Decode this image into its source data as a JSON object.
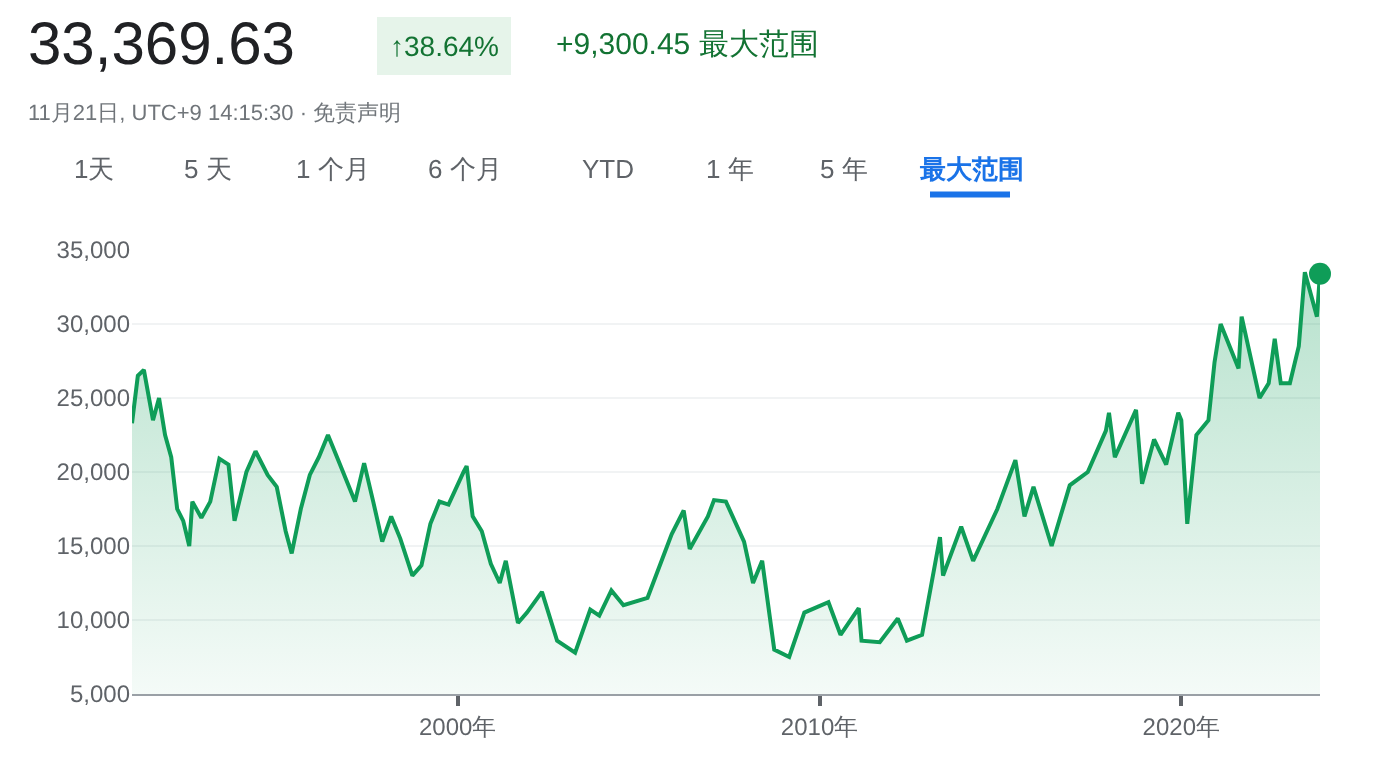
{
  "chart_data": {
    "type": "area",
    "x": [
      "1991-01",
      "1991-03",
      "1991-05",
      "1991-08",
      "1991-10",
      "1991-12",
      "1992-02",
      "1992-04",
      "1992-06",
      "1992-08",
      "1992-09",
      "1992-12",
      "1993-03",
      "1993-06",
      "1993-09",
      "1993-11",
      "1994-03",
      "1994-06",
      "1994-10",
      "1995-01",
      "1995-04",
      "1995-06",
      "1995-09",
      "1995-12",
      "1996-03",
      "1996-06",
      "1996-09",
      "1996-12",
      "1997-03",
      "1997-06",
      "1997-09",
      "1997-12",
      "1998-03",
      "1998-06",
      "1998-10",
      "1999-01",
      "1999-04",
      "1999-07",
      "1999-10",
      "2000-03",
      "2000-04",
      "2000-06",
      "2000-09",
      "2000-12",
      "2001-03",
      "2001-05",
      "2001-09",
      "2001-12",
      "2002-05",
      "2002-10",
      "2003-04",
      "2003-09",
      "2003-12",
      "2004-04",
      "2004-08",
      "2005-04",
      "2005-12",
      "2006-04",
      "2006-06",
      "2006-12",
      "2007-02",
      "2007-06",
      "2007-12",
      "2008-03",
      "2008-06",
      "2008-10",
      "2009-03",
      "2009-08",
      "2010-04",
      "2010-08",
      "2011-02",
      "2011-03",
      "2011-09",
      "2012-03",
      "2012-06",
      "2012-11",
      "2013-05",
      "2013-06",
      "2013-12",
      "2014-04",
      "2014-12",
      "2015-06",
      "2015-09",
      "2015-12",
      "2016-06",
      "2016-12",
      "2017-06",
      "2017-12",
      "2018-01",
      "2018-03",
      "2018-10",
      "2018-12",
      "2019-04",
      "2019-08",
      "2019-12",
      "2020-01",
      "2020-03",
      "2020-06",
      "2020-10",
      "2020-12",
      "2021-02",
      "2021-08",
      "2021-09",
      "2022-03",
      "2022-06",
      "2022-08",
      "2022-10",
      "2023-01",
      "2023-04",
      "2023-06",
      "2023-10",
      "2023-11"
    ],
    "series": [
      {
        "color": "#0f9d58",
        "marker": "none",
        "values": [
          23300,
          26500,
          26900,
          23500,
          25000,
          22500,
          21000,
          17500,
          16700,
          15000,
          18000,
          16900,
          18000,
          20900,
          20500,
          16700,
          20000,
          21400,
          19800,
          19000,
          16000,
          14500,
          17500,
          19800,
          21000,
          22500,
          21000,
          19500,
          18000,
          20600,
          18000,
          15300,
          17000,
          15500,
          13000,
          13700,
          16500,
          18000,
          17800,
          20000,
          20400,
          17000,
          16000,
          13800,
          12500,
          14000,
          9800,
          10500,
          11900,
          8600,
          7800,
          10700,
          10300,
          12000,
          11000,
          11500,
          15800,
          17400,
          14800,
          17000,
          18100,
          18000,
          15300,
          12500,
          14000,
          8000,
          7500,
          10500,
          11200,
          9000,
          10800,
          8600,
          8500,
          10100,
          8600,
          9000,
          15600,
          13000,
          16300,
          14000,
          17500,
          20800,
          17000,
          19000,
          15000,
          19100,
          20000,
          22800,
          24000,
          21000,
          24200,
          19200,
          22200,
          20500,
          24000,
          23500,
          16500,
          22500,
          23500,
          27400,
          30000,
          27000,
          30500,
          25000,
          26000,
          29000,
          26000,
          26000,
          28500,
          33500,
          30500,
          33400
        ]
      },
      {
        "type": "scatter",
        "color": "#0f9d58",
        "marker": "circle",
        "x": [
          "2023-11"
        ],
        "values": [
          33400
        ]
      }
    ],
    "xlim": [
      "1991-01",
      "2023-11"
    ],
    "xticks": [
      {
        "value": "2000-01",
        "label": "2000年"
      },
      {
        "value": "2010-01",
        "label": "2010年"
      },
      {
        "value": "2020-01",
        "label": "2020年"
      }
    ],
    "ylim": [
      5000,
      35000
    ],
    "yticks": [
      {
        "value": 5000,
        "label": "5,000"
      },
      {
        "value": 10000,
        "label": "10,000"
      },
      {
        "value": 15000,
        "label": "15,000"
      },
      {
        "value": 20000,
        "label": "20,000"
      },
      {
        "value": 25000,
        "label": "25,000"
      },
      {
        "value": 30000,
        "label": "30,000"
      },
      {
        "value": 35000,
        "label": "35,000"
      }
    ],
    "grid": "y",
    "legend": false,
    "annotations": [
      "33,369.63",
      "↑38.64%",
      "+9,300.45 最大范围",
      "11月21日, UTC+9 14:15:30 · 免责声明",
      "1天",
      "5 天",
      "1 个月",
      "6 个月",
      "YTD",
      "1 年",
      "5 年",
      "最大范围"
    ]
  }
}
